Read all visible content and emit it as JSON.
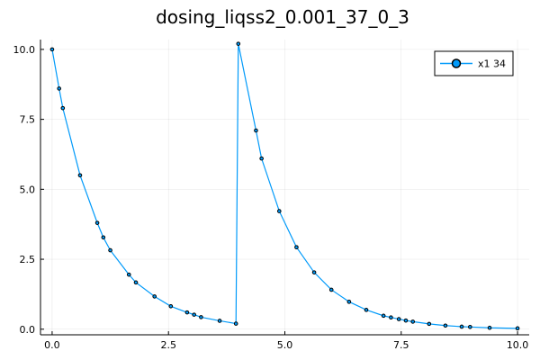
{
  "chart_data": {
    "type": "line",
    "title": "dosing_liqss2_0.001_37_0_3",
    "xlabel": "",
    "ylabel": "",
    "xlim": [
      -0.25,
      10.25
    ],
    "ylim": [
      -0.2,
      10.35
    ],
    "x_ticks": [
      0.0,
      2.5,
      5.0,
      7.5,
      10.0
    ],
    "x_tick_labels": [
      "0.0",
      "2.5",
      "5.0",
      "7.5",
      "10.0"
    ],
    "y_ticks": [
      0.0,
      2.5,
      5.0,
      7.5,
      10.0
    ],
    "y_tick_labels": [
      "0.0",
      "2.5",
      "5.0",
      "7.5",
      "10.0"
    ],
    "grid": true,
    "legend_position": "top-right",
    "series": [
      {
        "name": "x1 34",
        "color": "#009AFA",
        "marker": "circle",
        "x": [
          0.0,
          0.15,
          0.23,
          0.6,
          0.97,
          1.1,
          1.25,
          1.65,
          1.8,
          2.2,
          2.55,
          2.9,
          3.05,
          3.2,
          3.6,
          3.95,
          4.0,
          4.38,
          4.5,
          4.88,
          5.25,
          5.63,
          6.0,
          6.38,
          6.75,
          7.12,
          7.28,
          7.45,
          7.6,
          7.75,
          8.1,
          8.45,
          8.8,
          8.98,
          9.4,
          10.0
        ],
        "y": [
          10.0,
          8.6,
          7.9,
          5.5,
          3.8,
          3.28,
          2.82,
          1.95,
          1.67,
          1.17,
          0.82,
          0.6,
          0.52,
          0.43,
          0.3,
          0.2,
          10.2,
          7.1,
          6.1,
          4.22,
          2.93,
          2.03,
          1.41,
          0.98,
          0.69,
          0.48,
          0.42,
          0.36,
          0.31,
          0.27,
          0.19,
          0.13,
          0.09,
          0.08,
          0.05,
          0.03
        ]
      }
    ]
  }
}
